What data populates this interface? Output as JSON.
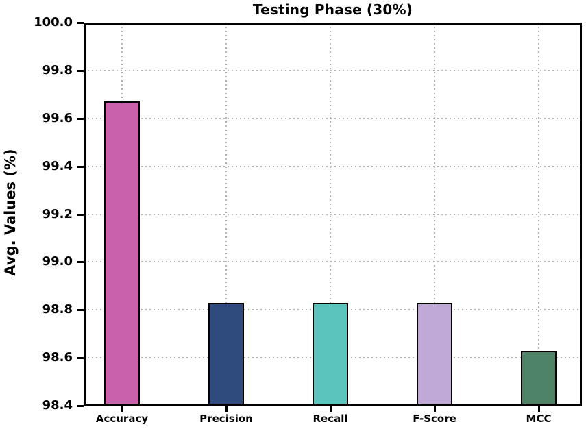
{
  "chart_data": {
    "type": "bar",
    "title": "Testing Phase (30%)",
    "xlabel": "",
    "ylabel": "Avg. Values (%)",
    "categories": [
      "Accuracy",
      "Precision",
      "Recall",
      "F-Score",
      "MCC"
    ],
    "values": [
      99.67,
      98.83,
      98.83,
      98.83,
      98.63
    ],
    "bar_colors": [
      "#c961ad",
      "#2f4b7e",
      "#5bc4bd",
      "#c0a9d7",
      "#4f8368"
    ],
    "bar_edge_color": "#000000",
    "ylim": [
      98.4,
      100.0
    ],
    "yticks": [
      98.4,
      98.6,
      98.8,
      99.0,
      99.2,
      99.4,
      99.6,
      99.8,
      100.0
    ],
    "ytick_labels": [
      "98.4",
      "98.6",
      "98.8",
      "99.0",
      "99.2",
      "99.4",
      "99.6",
      "99.8",
      "100.0"
    ],
    "grid": "dotted gridlines on both axes, drawn below bars",
    "grid_color": "#b5b5b5",
    "legend_position": "none",
    "background_color": "#ffffff"
  }
}
